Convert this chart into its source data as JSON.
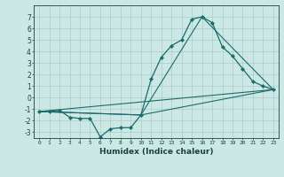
{
  "title": "",
  "xlabel": "Humidex (Indice chaleur)",
  "ylabel": "",
  "background_color": "#cce8e5",
  "grid_color": "#aacccc",
  "line_color": "#1a6b6b",
  "ylim": [
    -3.5,
    8.0
  ],
  "xlim": [
    -0.5,
    23.5
  ],
  "yticks": [
    -3,
    -2,
    -1,
    0,
    1,
    2,
    3,
    4,
    5,
    6,
    7
  ],
  "xticks": [
    0,
    1,
    2,
    3,
    4,
    5,
    6,
    7,
    8,
    9,
    10,
    11,
    12,
    13,
    14,
    15,
    16,
    17,
    18,
    19,
    20,
    21,
    22,
    23
  ],
  "series_main": {
    "x": [
      0,
      1,
      2,
      3,
      4,
      5,
      6,
      7,
      8,
      9,
      10,
      11,
      12,
      13,
      14,
      15,
      16,
      17,
      18,
      19,
      20,
      21,
      22,
      23
    ],
    "y": [
      -1.2,
      -1.2,
      -1.1,
      -1.7,
      -1.8,
      -1.8,
      -3.4,
      -2.7,
      -2.6,
      -2.6,
      -1.5,
      1.6,
      3.5,
      4.5,
      5.0,
      6.8,
      7.0,
      6.5,
      4.4,
      3.6,
      2.5,
      1.4,
      1.0,
      0.7
    ]
  },
  "series_line1": {
    "x": [
      0,
      23
    ],
    "y": [
      -1.2,
      0.7
    ]
  },
  "series_line2": {
    "x": [
      0,
      10,
      23
    ],
    "y": [
      -1.2,
      -1.5,
      0.7
    ]
  },
  "series_line3": {
    "x": [
      0,
      10,
      16,
      23
    ],
    "y": [
      -1.2,
      -1.5,
      7.0,
      0.7
    ]
  }
}
